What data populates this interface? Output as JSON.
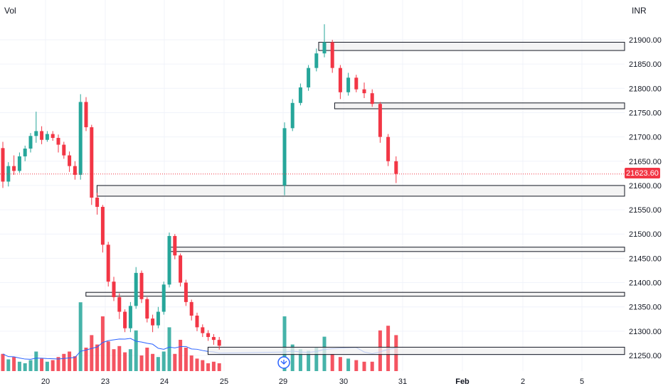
{
  "header": {
    "volume_label": "Vol",
    "currency": "INR"
  },
  "price_badge": {
    "value": "21623.60"
  },
  "colors": {
    "up": "#26a69a",
    "down": "#f23645",
    "ma": "#2962ff",
    "grid": "#f0f3fa",
    "zone_fill": "#f0f0f0",
    "zone_border": "#131722"
  },
  "chart_data": {
    "type": "candlestick",
    "yaxis": {
      "range": [
        21225,
        21935
      ],
      "ticks": [
        "21900.00",
        "21850.00",
        "21800.00",
        "21750.00",
        "21700.00",
        "21650.00",
        "21600.00",
        "21550.00",
        "21500.00",
        "21450.00",
        "21400.00",
        "21350.00",
        "21300.00",
        "21250.00"
      ]
    },
    "xaxis": {
      "ticks": [
        "20",
        "23",
        "24",
        "25",
        "29",
        "30",
        "31",
        "Feb",
        "2",
        "5"
      ]
    },
    "last_price": 21623.6,
    "candles": [
      [
        21677,
        21690,
        21595,
        21608
      ],
      [
        21608,
        21648,
        21598,
        21640
      ],
      [
        21640,
        21662,
        21622,
        21630
      ],
      [
        21630,
        21668,
        21626,
        21660
      ],
      [
        21660,
        21682,
        21650,
        21676
      ],
      [
        21676,
        21708,
        21668,
        21702
      ],
      [
        21702,
        21752,
        21688,
        21712
      ],
      [
        21712,
        21722,
        21685,
        21694
      ],
      [
        21694,
        21712,
        21690,
        21706
      ],
      [
        21706,
        21712,
        21692,
        21698
      ],
      [
        21698,
        21705,
        21668,
        21684
      ],
      [
        21684,
        21690,
        21655,
        21662
      ],
      [
        21662,
        21670,
        21628,
        21640
      ],
      [
        21640,
        21650,
        21612,
        21622
      ],
      [
        21622,
        21788,
        21612,
        21772
      ],
      [
        21772,
        21782,
        21712,
        21720
      ],
      [
        21720,
        21725,
        21560,
        21575
      ],
      [
        21575,
        21585,
        21540,
        21556
      ],
      [
        21556,
        21560,
        21462,
        21478
      ],
      [
        21478,
        21484,
        21392,
        21402
      ],
      [
        21402,
        21412,
        21362,
        21370
      ],
      [
        21370,
        21378,
        21325,
        21340
      ],
      [
        21340,
        21345,
        21298,
        21306
      ],
      [
        21306,
        21360,
        21298,
        21352
      ],
      [
        21352,
        21432,
        21346,
        21420
      ],
      [
        21420,
        21425,
        21358,
        21366
      ],
      [
        21366,
        21370,
        21318,
        21326
      ],
      [
        21326,
        21334,
        21298,
        21312
      ],
      [
        21312,
        21350,
        21306,
        21340
      ],
      [
        21340,
        21402,
        21334,
        21396
      ],
      [
        21396,
        21503,
        21390,
        21496
      ],
      [
        21496,
        21500,
        21448,
        21456
      ],
      [
        21456,
        21460,
        21392,
        21400
      ],
      [
        21400,
        21406,
        21352,
        21360
      ],
      [
        21360,
        21365,
        21322,
        21332
      ],
      [
        21332,
        21338,
        21300,
        21308
      ],
      [
        21308,
        21314,
        21288,
        21296
      ],
      [
        21296,
        21302,
        21280,
        21288
      ],
      [
        21288,
        21294,
        21272,
        21282
      ],
      [
        21282,
        21288,
        21262,
        21270
      ],
      [
        21600,
        21730,
        21580,
        21718
      ],
      [
        21718,
        21778,
        21712,
        21770
      ],
      [
        21770,
        21810,
        21765,
        21802
      ],
      [
        21802,
        21848,
        21795,
        21842
      ],
      [
        21842,
        21882,
        21835,
        21872
      ],
      [
        21872,
        21932,
        21864,
        21895
      ],
      [
        21895,
        21900,
        21832,
        21842
      ],
      [
        21842,
        21848,
        21778,
        21792
      ],
      [
        21792,
        21832,
        21785,
        21822
      ],
      [
        21822,
        21828,
        21792,
        21798
      ],
      [
        21798,
        21812,
        21780,
        21790
      ],
      [
        21790,
        21798,
        21762,
        21768
      ],
      [
        21768,
        21772,
        21688,
        21700
      ],
      [
        21700,
        21706,
        21640,
        21650
      ],
      [
        21650,
        21660,
        21605,
        21624
      ]
    ],
    "volume": [
      22,
      15,
      18,
      12,
      10,
      14,
      25,
      16,
      12,
      14,
      18,
      22,
      25,
      19,
      88,
      30,
      46,
      34,
      70,
      38,
      28,
      32,
      24,
      28,
      52,
      20,
      30,
      22,
      18,
      25,
      56,
      22,
      40,
      30,
      20,
      16,
      14,
      10,
      12,
      10,
      70,
      34,
      28,
      26,
      30,
      44,
      22,
      18,
      16,
      14,
      12,
      12,
      52,
      58,
      46
    ],
    "zones": [
      {
        "top": 21895,
        "bottom": 21878
      },
      {
        "top": 21770,
        "bottom": 21758
      },
      {
        "top": 21600,
        "bottom": 21578
      },
      {
        "top": 21473,
        "bottom": 21464
      },
      {
        "top": 21380,
        "bottom": 21372
      },
      {
        "top": 21267,
        "bottom": 21252
      }
    ]
  }
}
